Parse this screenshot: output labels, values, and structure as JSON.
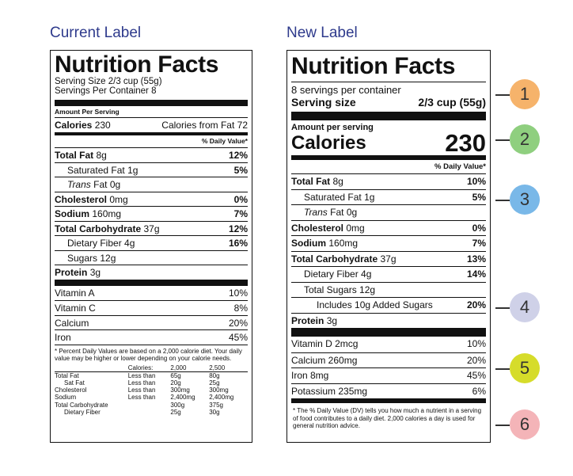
{
  "current": {
    "heading": "Current Label",
    "title": "Nutrition Facts",
    "serving_size": "Serving Size 2/3 cup (55g)",
    "servings_per_container": "Servings Per Container 8",
    "amount_per_serving": "Amount Per Serving",
    "calories_label": "Calories",
    "calories_value": "230",
    "calories_from_fat": "Calories from Fat 72",
    "dv_header": "% Daily Value*",
    "nutrients": [
      {
        "name": "Total Fat",
        "amount": "8g",
        "dv": "12%"
      },
      {
        "name": "Saturated Fat",
        "amount": "1g",
        "dv": "5%"
      },
      {
        "name": "Trans",
        "amount": "Fat 0g",
        "dv": ""
      },
      {
        "name": "Cholesterol",
        "amount": "0mg",
        "dv": "0%"
      },
      {
        "name": "Sodium",
        "amount": "160mg",
        "dv": "7%"
      },
      {
        "name": "Total Carbohydrate",
        "amount": "37g",
        "dv": "12%"
      },
      {
        "name": "Dietary Fiber",
        "amount": "4g",
        "dv": "16%"
      },
      {
        "name": "Sugars",
        "amount": "12g",
        "dv": ""
      },
      {
        "name": "Protein",
        "amount": "3g",
        "dv": ""
      }
    ],
    "vitamins": [
      {
        "name": "Vitamin A",
        "dv": "10%"
      },
      {
        "name": "Vitamin C",
        "dv": "8%"
      },
      {
        "name": "Calcium",
        "dv": "20%"
      },
      {
        "name": "Iron",
        "dv": "45%"
      }
    ],
    "footnote": "* Percent Daily Values are based on a 2,000 calorie diet. Your daily value may be higher or lower depending on your calorie needs.",
    "footnote_cols": [
      "Calories:",
      "2,000",
      "2,500"
    ],
    "footnote_rows": [
      [
        "Total Fat",
        "Less than",
        "65g",
        "80g"
      ],
      [
        "Sat Fat",
        "Less than",
        "20g",
        "25g"
      ],
      [
        "Cholesterol",
        "Less than",
        "300mg",
        "300mg"
      ],
      [
        "Sodium",
        "Less than",
        "2,400mg",
        "2,400mg"
      ],
      [
        "Total Carbohydrate",
        "",
        "300g",
        "375g"
      ],
      [
        "Dietary Fiber",
        "",
        "25g",
        "30g"
      ]
    ]
  },
  "new": {
    "heading": "New Label",
    "title": "Nutrition Facts",
    "servings_per_container": "8 servings per container",
    "serving_size_label": "Serving size",
    "serving_size_value": "2/3 cup (55g)",
    "amount_per_serving": "Amount per serving",
    "calories_label": "Calories",
    "calories_value": "230",
    "dv_header": "% Daily Value*",
    "nutrients": [
      {
        "name": "Total Fat",
        "amount": "8g",
        "dv": "10%"
      },
      {
        "name": "Saturated Fat",
        "amount": "1g",
        "dv": "5%"
      },
      {
        "name": "Trans",
        "amount": "Fat 0g",
        "dv": ""
      },
      {
        "name": "Cholesterol",
        "amount": "0mg",
        "dv": "0%"
      },
      {
        "name": "Sodium",
        "amount": "160mg",
        "dv": "7%"
      },
      {
        "name": "Total Carbohydrate",
        "amount": "37g",
        "dv": "13%"
      },
      {
        "name": "Dietary Fiber",
        "amount": "4g",
        "dv": "14%"
      },
      {
        "name": "Total Sugars",
        "amount": "12g",
        "dv": ""
      },
      {
        "name": "Includes 10g Added Sugars",
        "amount": "",
        "dv": "20%"
      },
      {
        "name": "Protein",
        "amount": "3g",
        "dv": ""
      }
    ],
    "vitamins": [
      {
        "name": "Vitamin D 2mcg",
        "dv": "10%"
      },
      {
        "name": "Calcium 260mg",
        "dv": "20%"
      },
      {
        "name": "Iron 8mg",
        "dv": "45%"
      },
      {
        "name": "Potassium 235mg",
        "dv": "6%"
      }
    ],
    "footnote": "* The % Daily Value (DV) tells you how much a nutrient in a serving of food contributes to a daily diet. 2,000 calories a day is used for general nutrition advice."
  },
  "callouts": [
    {
      "number": "1",
      "color": "#f6b36b"
    },
    {
      "number": "2",
      "color": "#8fcf7f"
    },
    {
      "number": "3",
      "color": "#79b8e8"
    },
    {
      "number": "4",
      "color": "#cfd1e8"
    },
    {
      "number": "5",
      "color": "#d6dc2a"
    },
    {
      "number": "6",
      "color": "#f4b4b8"
    }
  ]
}
